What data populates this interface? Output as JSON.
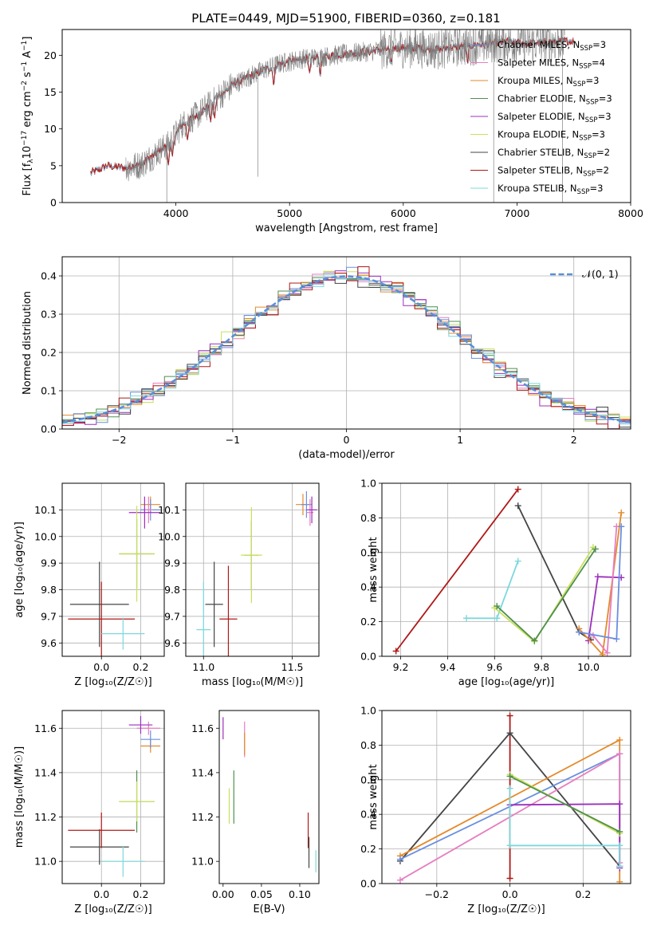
{
  "title": "PLATE=0449, MJD=51900, FIBERID=0360, z=0.181",
  "colors": [
    "#6a8fe0",
    "#e48a2a",
    "#4f8f4f",
    "#9b2fbd",
    "#c8e05a",
    "#444444",
    "#b01818",
    "#7dd8dc",
    "#e57fc0"
  ],
  "chart_data": [
    {
      "id": "spectrum",
      "type": "line",
      "xlabel": "wavelength [Angstrom, rest frame]",
      "ylabel_base": "Flux [f",
      "ylabel_sub": "λ",
      "ylabel_rest": "10",
      "ylabel_sup1": "−17",
      "ylabel_rest2": " erg cm",
      "ylabel_sup2": "−2",
      "ylabel_rest3": " s",
      "ylabel_sup3": "−1",
      "ylabel_rest4": " A",
      "ylabel_sup4": "−1",
      "ylabel_end": "]",
      "xlim": [
        3000,
        8000
      ],
      "ylim": [
        0,
        23.5
      ],
      "xticks": [
        "4000",
        "5000",
        "6000",
        "7000",
        "8000"
      ],
      "xtick_values": [
        4000,
        5000,
        6000,
        7000,
        8000
      ],
      "yticks": [
        "0",
        "5",
        "10",
        "15",
        "20"
      ],
      "ytick_values": [
        0,
        5,
        10,
        15,
        20
      ],
      "legend_position": "upper-right",
      "legend": [
        {
          "base": "Chabrier MILES, N",
          "sub": "SSP",
          "tail": "=3",
          "color": "#6a8fe0"
        },
        {
          "base": "Salpeter MILES, N",
          "sub": "SSP",
          "tail": "=4",
          "color": "#e57fc0"
        },
        {
          "base": "Kroupa MILES, N",
          "sub": "SSP",
          "tail": "=3",
          "color": "#e48a2a"
        },
        {
          "base": "Chabrier ELODIE, N",
          "sub": "SSP",
          "tail": "=3",
          "color": "#4f8f4f"
        },
        {
          "base": "Salpeter ELODIE, N",
          "sub": "SSP",
          "tail": "=3",
          "color": "#9b2fbd"
        },
        {
          "base": "Kroupa ELODIE, N",
          "sub": "SSP",
          "tail": "=3",
          "color": "#c8e05a"
        },
        {
          "base": "Chabrier STELIB, N",
          "sub": "SSP",
          "tail": "=2",
          "color": "#444444"
        },
        {
          "base": "Salpeter STELIB, N",
          "sub": "SSP",
          "tail": "=2",
          "color": "#b01818"
        },
        {
          "base": "Kroupa STELIB, N",
          "sub": "SSP",
          "tail": "=3",
          "color": "#7dd8dc"
        }
      ],
      "continuum_x": [
        3250,
        3400,
        3550,
        3700,
        3850,
        3950,
        4050,
        4200,
        4350,
        4500,
        4700,
        4900,
        5100,
        5300,
        5500,
        5700,
        5900,
        6100,
        6300,
        6500,
        6700,
        6900,
        7100,
        7300,
        7500
      ],
      "continuum_y": [
        4,
        5,
        4.7,
        5.2,
        7,
        8,
        10.5,
        12,
        14,
        16,
        17.5,
        18.8,
        19.5,
        19.8,
        20.2,
        20.5,
        21,
        21,
        20.8,
        21.2,
        21.5,
        21.8,
        21.6,
        21.8,
        22
      ]
    },
    {
      "id": "residuals",
      "type": "histogram",
      "xlabel": "(data-model)/error",
      "ylabel": "Normed distribution",
      "xlim": [
        -2.5,
        2.5
      ],
      "ylim": [
        0,
        0.45
      ],
      "xticks": [
        "−2",
        "−1",
        "0",
        "1",
        "2"
      ],
      "xtick_values": [
        -2,
        -1,
        0,
        1,
        2
      ],
      "yticks": [
        "0.0",
        "0.1",
        "0.2",
        "0.3",
        "0.4"
      ],
      "ytick_values": [
        0,
        0.1,
        0.2,
        0.3,
        0.4
      ],
      "grid": true,
      "legend_position": "upper-right",
      "legend_label": "𝒩(0, 1)",
      "bin_width": 0.1,
      "curve": "standard normal"
    },
    {
      "id": "age-metallicity",
      "type": "scatter",
      "xlabel": "Z [log₁₀(Z/Z☉)]",
      "ylabel": "age  [log₁₀(age/yr)]",
      "xlim": [
        -0.2,
        0.32
      ],
      "ylim": [
        9.55,
        10.2
      ],
      "xticks": [
        "0.0",
        "0.2"
      ],
      "xtick_values": [
        0,
        0.2
      ],
      "yticks": [
        "9.6",
        "9.7",
        "9.8",
        "9.9",
        "10.0",
        "10.1"
      ],
      "ytick_values": [
        9.6,
        9.7,
        9.8,
        9.9,
        10.0,
        10.1
      ],
      "grid": true,
      "points": [
        {
          "x": 0.25,
          "y": 10.12,
          "xe": 0.05,
          "ye": 0.03,
          "c": 1
        },
        {
          "x": 0.25,
          "y": 10.1,
          "xe": 0.05,
          "ye": 0.04,
          "c": 0
        },
        {
          "x": 0.24,
          "y": 10.1,
          "xe": 0.02,
          "ye": 0.05,
          "c": 8
        },
        {
          "x": 0.22,
          "y": 10.09,
          "xe": 0.08,
          "ye": 0.06,
          "c": 3
        },
        {
          "x": 0.18,
          "y": 9.935,
          "xe": 0.09,
          "ye": 0.13,
          "c": 2
        },
        {
          "x": 0.18,
          "y": 9.935,
          "xe": 0.09,
          "ye": 0.18,
          "c": 4
        },
        {
          "x": -0.01,
          "y": 9.745,
          "xe": 0.15,
          "ye": 0.16,
          "c": 5
        },
        {
          "x": 0.0,
          "y": 9.69,
          "xe": 0.17,
          "ye": 0.14,
          "c": 6
        },
        {
          "x": 0.11,
          "y": 9.635,
          "xe": 0.11,
          "ye": 0.06,
          "c": 7
        }
      ]
    },
    {
      "id": "age-mass",
      "type": "scatter",
      "xlabel": "mass [log₁₀(M/M☉)]",
      "ylabel": "",
      "xlim": [
        10.9,
        11.65
      ],
      "ylim": [
        9.55,
        10.2
      ],
      "xticks": [
        "11.0",
        "11.5"
      ],
      "xtick_values": [
        11.0,
        11.5
      ],
      "yticks": [
        "9.6",
        "9.7",
        "9.8",
        "9.9",
        "10.0",
        "10.1"
      ],
      "ytick_values": [
        9.6,
        9.7,
        9.8,
        9.9,
        10.0,
        10.1
      ],
      "grid": true,
      "points": [
        {
          "x": 11.56,
          "y": 10.12,
          "xe": 0.04,
          "ye": 0.04,
          "c": 1
        },
        {
          "x": 11.58,
          "y": 10.12,
          "xe": 0.03,
          "ye": 0.05,
          "c": 0
        },
        {
          "x": 11.6,
          "y": 10.09,
          "xe": 0.02,
          "ye": 0.05,
          "c": 8
        },
        {
          "x": 11.61,
          "y": 10.1,
          "xe": 0.03,
          "ye": 0.05,
          "c": 3
        },
        {
          "x": 11.27,
          "y": 9.93,
          "xe": 0.04,
          "ye": 0.13,
          "c": 2
        },
        {
          "x": 11.27,
          "y": 9.93,
          "xe": 0.06,
          "ye": 0.18,
          "c": 4
        },
        {
          "x": 11.06,
          "y": 9.745,
          "xe": 0.05,
          "ye": 0.16,
          "c": 5
        },
        {
          "x": 11.14,
          "y": 9.69,
          "xe": 0.05,
          "ye": 0.2,
          "c": 6
        },
        {
          "x": 11.0,
          "y": 9.65,
          "xe": 0.04,
          "ye": 0.18,
          "c": 7
        }
      ]
    },
    {
      "id": "mass-weight-age",
      "type": "line",
      "xlabel": "age  [log₁₀(age/yr)]",
      "ylabel": "mass weight",
      "xlim": [
        9.12,
        10.18
      ],
      "ylim": [
        0,
        1
      ],
      "xticks": [
        "9.2",
        "9.4",
        "9.6",
        "9.8",
        "10.0"
      ],
      "xtick_values": [
        9.2,
        9.4,
        9.6,
        9.8,
        10.0
      ],
      "yticks": [
        "0.0",
        "0.2",
        "0.4",
        "0.6",
        "0.8",
        "1.0"
      ],
      "ytick_values": [
        0,
        0.2,
        0.4,
        0.6,
        0.8,
        1.0
      ],
      "grid": true,
      "series": [
        {
          "c": 6,
          "x": [
            9.18,
            9.7
          ],
          "y": [
            0.03,
            0.965
          ]
        },
        {
          "c": 5,
          "x": [
            9.7,
            9.96,
            10.01
          ],
          "y": [
            0.87,
            0.14,
            0.095
          ]
        },
        {
          "c": 7,
          "x": [
            9.48,
            9.61,
            9.7
          ],
          "y": [
            0.22,
            0.22,
            0.55
          ]
        },
        {
          "c": 4,
          "x": [
            9.6,
            9.77,
            10.02
          ],
          "y": [
            0.28,
            0.085,
            0.63
          ]
        },
        {
          "c": 2,
          "x": [
            9.61,
            9.77,
            10.03
          ],
          "y": [
            0.29,
            0.09,
            0.62
          ]
        },
        {
          "c": 3,
          "x": [
            10.0,
            10.04,
            10.14
          ],
          "y": [
            0.09,
            0.46,
            0.455
          ]
        },
        {
          "c": 1,
          "x": [
            9.96,
            10.06,
            10.14
          ],
          "y": [
            0.16,
            0.01,
            0.83
          ]
        },
        {
          "c": 8,
          "x": [
            10.02,
            10.08,
            10.12
          ],
          "y": [
            0.12,
            0.02,
            0.75
          ]
        },
        {
          "c": 0,
          "x": [
            9.96,
            10.12,
            10.14
          ],
          "y": [
            0.14,
            0.1,
            0.75
          ]
        }
      ]
    },
    {
      "id": "mass-metallicity",
      "type": "scatter",
      "xlabel": "Z [log₁₀(Z/Z☉)]",
      "ylabel": "mass [log₁₀(M/M☉)]",
      "xlim": [
        -0.2,
        0.32
      ],
      "ylim": [
        10.9,
        11.68
      ],
      "xticks": [
        "0.0",
        "0.2"
      ],
      "xtick_values": [
        0,
        0.2
      ],
      "yticks": [
        "11.0",
        "11.2",
        "11.4",
        "11.6"
      ],
      "ytick_values": [
        11.0,
        11.2,
        11.4,
        11.6
      ],
      "grid": true,
      "points": [
        {
          "x": 0.25,
          "y": 11.52,
          "xe": 0.05,
          "ye": 0.03,
          "c": 1
        },
        {
          "x": 0.25,
          "y": 11.55,
          "xe": 0.05,
          "ye": 0.04,
          "c": 0
        },
        {
          "x": 0.24,
          "y": 11.6,
          "xe": 0.06,
          "ye": 0.03,
          "c": 8
        },
        {
          "x": 0.2,
          "y": 11.615,
          "xe": 0.06,
          "ye": 0.04,
          "c": 3
        },
        {
          "x": 0.18,
          "y": 11.27,
          "xe": 0.09,
          "ye": 0.14,
          "c": 2
        },
        {
          "x": 0.18,
          "y": 11.27,
          "xe": 0.09,
          "ye": 0.09,
          "c": 4
        },
        {
          "x": -0.01,
          "y": 11.065,
          "xe": 0.15,
          "ye": 0.08,
          "c": 5
        },
        {
          "x": 0.0,
          "y": 11.14,
          "xe": 0.17,
          "ye": 0.08,
          "c": 6
        },
        {
          "x": 0.11,
          "y": 11.0,
          "xe": 0.11,
          "ye": 0.07,
          "c": 7
        }
      ]
    },
    {
      "id": "mass-ebv",
      "type": "scatter",
      "xlabel": "E(B-V)",
      "ylabel": "",
      "xlim": [
        -0.005,
        0.125
      ],
      "ylim": [
        10.9,
        11.68
      ],
      "xticks": [
        "0.00",
        "0.05",
        "0.10"
      ],
      "xtick_values": [
        0,
        0.05,
        0.1
      ],
      "yticks": [
        "11.0",
        "11.2",
        "11.4",
        "11.6"
      ],
      "ytick_values": [
        11.0,
        11.2,
        11.4,
        11.6
      ],
      "grid": false,
      "points": [
        {
          "x": 0.0,
          "y": 11.6,
          "xe": 0,
          "ye": 0.05,
          "c": 3
        },
        {
          "x": 0.028,
          "y": 11.55,
          "xe": 0,
          "ye": 0.08,
          "c": 8
        },
        {
          "x": 0.028,
          "y": 11.53,
          "xe": 0,
          "ye": 0.05,
          "c": 1
        },
        {
          "x": 0.014,
          "y": 11.29,
          "xe": 0,
          "ye": 0.12,
          "c": 2
        },
        {
          "x": 0.008,
          "y": 11.25,
          "xe": 0,
          "ye": 0.08,
          "c": 4
        },
        {
          "x": 0.111,
          "y": 11.14,
          "xe": 0,
          "ye": 0.08,
          "c": 6
        },
        {
          "x": 0.112,
          "y": 11.04,
          "xe": 0,
          "ye": 0.07,
          "c": 5
        },
        {
          "x": 0.121,
          "y": 11.0,
          "xe": 0,
          "ye": 0.05,
          "c": 7
        }
      ]
    },
    {
      "id": "mass-weight-metallicity",
      "type": "line",
      "xlabel": "Z [log₁₀(Z/Z☉)]",
      "ylabel": "mass weight",
      "xlim": [
        -0.35,
        0.33
      ],
      "ylim": [
        0,
        1
      ],
      "xticks": [
        "−0.2",
        "0.0",
        "0.2"
      ],
      "xtick_values": [
        -0.2,
        0,
        0.2
      ],
      "yticks": [
        "0.0",
        "0.2",
        "0.4",
        "0.6",
        "0.8",
        "1.0"
      ],
      "ytick_values": [
        0,
        0.2,
        0.4,
        0.6,
        0.8,
        1.0
      ],
      "grid": true,
      "series": [
        {
          "c": 6,
          "x": [
            0,
            0
          ],
          "y": [
            0.03,
            0.97
          ]
        },
        {
          "c": 5,
          "x": [
            -0.3,
            0,
            0.3
          ],
          "y": [
            0.13,
            0.87,
            0.1
          ]
        },
        {
          "c": 1,
          "x": [
            -0.3,
            0.3,
            0.3
          ],
          "y": [
            0.16,
            0.83,
            0.01
          ]
        },
        {
          "c": 0,
          "x": [
            -0.3,
            0.3,
            0.3
          ],
          "y": [
            0.14,
            0.75,
            0.1
          ]
        },
        {
          "c": 8,
          "x": [
            -0.3,
            0.3,
            0.3
          ],
          "y": [
            0.02,
            0.75,
            0.12
          ]
        },
        {
          "c": 3,
          "x": [
            0,
            0.3,
            0.3
          ],
          "y": [
            0.455,
            0.46,
            0.09
          ]
        },
        {
          "c": 4,
          "x": [
            0,
            0.3
          ],
          "y": [
            0.63,
            0.29
          ]
        },
        {
          "c": 2,
          "x": [
            0,
            0.3
          ],
          "y": [
            0.62,
            0.3
          ]
        },
        {
          "c": 7,
          "x": [
            0,
            0,
            0.3,
            0.3
          ],
          "y": [
            0.55,
            0.22,
            0.22,
            0.1
          ]
        }
      ]
    }
  ]
}
